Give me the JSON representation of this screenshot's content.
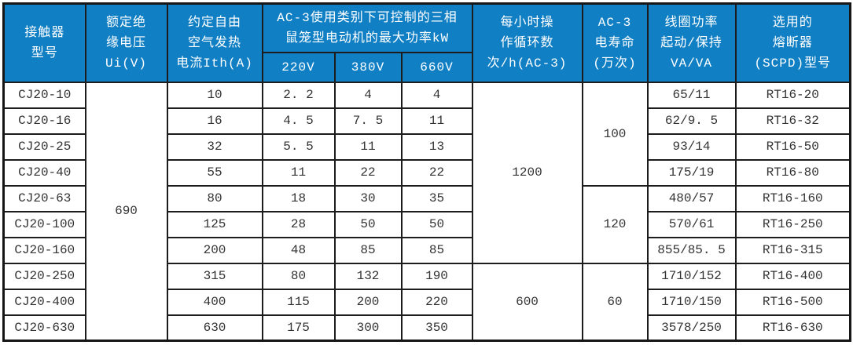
{
  "table": {
    "headers": {
      "model": [
        "接触器",
        "型号"
      ],
      "ui": [
        "额定绝",
        "缘电压",
        "Ui(V)"
      ],
      "ith": [
        "约定自由",
        "空气发热",
        "电流Ith(A)"
      ],
      "ac3_power": [
        "AC-3使用类别下可控制的三相",
        "鼠笼型电动机的最大功率kW"
      ],
      "v220": "220V",
      "v380": "380V",
      "v660": "660V",
      "cycles": [
        "每小时操",
        "作循环数",
        "次/h(AC-3)"
      ],
      "life": [
        "AC-3",
        "电寿命",
        "(万次)"
      ],
      "coil": [
        "线圈功率",
        "起动/保持",
        "VA/VA"
      ],
      "fuse": [
        "选用的",
        "熔断器",
        "(SCPD)型号"
      ]
    },
    "rows": [
      {
        "model": "CJ20-10",
        "ith": "10",
        "p220": "2. 2",
        "p380": "4",
        "p660": "4",
        "coil": "65/11",
        "fuse": "RT16-20"
      },
      {
        "model": "CJ20-16",
        "ith": "16",
        "p220": "4. 5",
        "p380": "7. 5",
        "p660": "11",
        "coil": "62/9. 5",
        "fuse": "RT16-32"
      },
      {
        "model": "CJ20-25",
        "ith": "32",
        "p220": "5. 5",
        "p380": "11",
        "p660": "13",
        "coil": "93/14",
        "fuse": "RT16-50"
      },
      {
        "model": "CJ20-40",
        "ith": "55",
        "p220": "11",
        "p380": "22",
        "p660": "22",
        "coil": "175/19",
        "fuse": "RT16-80"
      },
      {
        "model": "CJ20-63",
        "ith": "80",
        "p220": "18",
        "p380": "30",
        "p660": "35",
        "coil": "480/57",
        "fuse": "RT16-160"
      },
      {
        "model": "CJ20-100",
        "ith": "125",
        "p220": "28",
        "p380": "50",
        "p660": "50",
        "coil": "570/61",
        "fuse": "RT16-250"
      },
      {
        "model": "CJ20-160",
        "ith": "200",
        "p220": "48",
        "p380": "85",
        "p660": "85",
        "coil": "855/85. 5",
        "fuse": "RT16-315"
      },
      {
        "model": "CJ20-250",
        "ith": "315",
        "p220": "80",
        "p380": "132",
        "p660": "190",
        "coil": "1710/152",
        "fuse": "RT16-400"
      },
      {
        "model": "CJ20-400",
        "ith": "400",
        "p220": "115",
        "p380": "200",
        "p660": "220",
        "coil": "1710/150",
        "fuse": "RT16-500"
      },
      {
        "model": "CJ20-630",
        "ith": "630",
        "p220": "175",
        "p380": "300",
        "p660": "350",
        "coil": "3578/250",
        "fuse": "RT16-630"
      }
    ],
    "merges": {
      "ui": [
        {
          "value": "690",
          "start": 0,
          "span": 10
        }
      ],
      "cycles": [
        {
          "value": "1200",
          "start": 0,
          "span": 7
        },
        {
          "value": "600",
          "start": 7,
          "span": 3
        }
      ],
      "life": [
        {
          "value": "100",
          "start": 0,
          "span": 4
        },
        {
          "value": "120",
          "start": 4,
          "span": 3
        },
        {
          "value": "60",
          "start": 7,
          "span": 3
        }
      ]
    }
  },
  "colors": {
    "header_bg": "#117fc4",
    "header_text": "#ffffff",
    "border": "#1c1c1c",
    "body_text": "#333333"
  }
}
